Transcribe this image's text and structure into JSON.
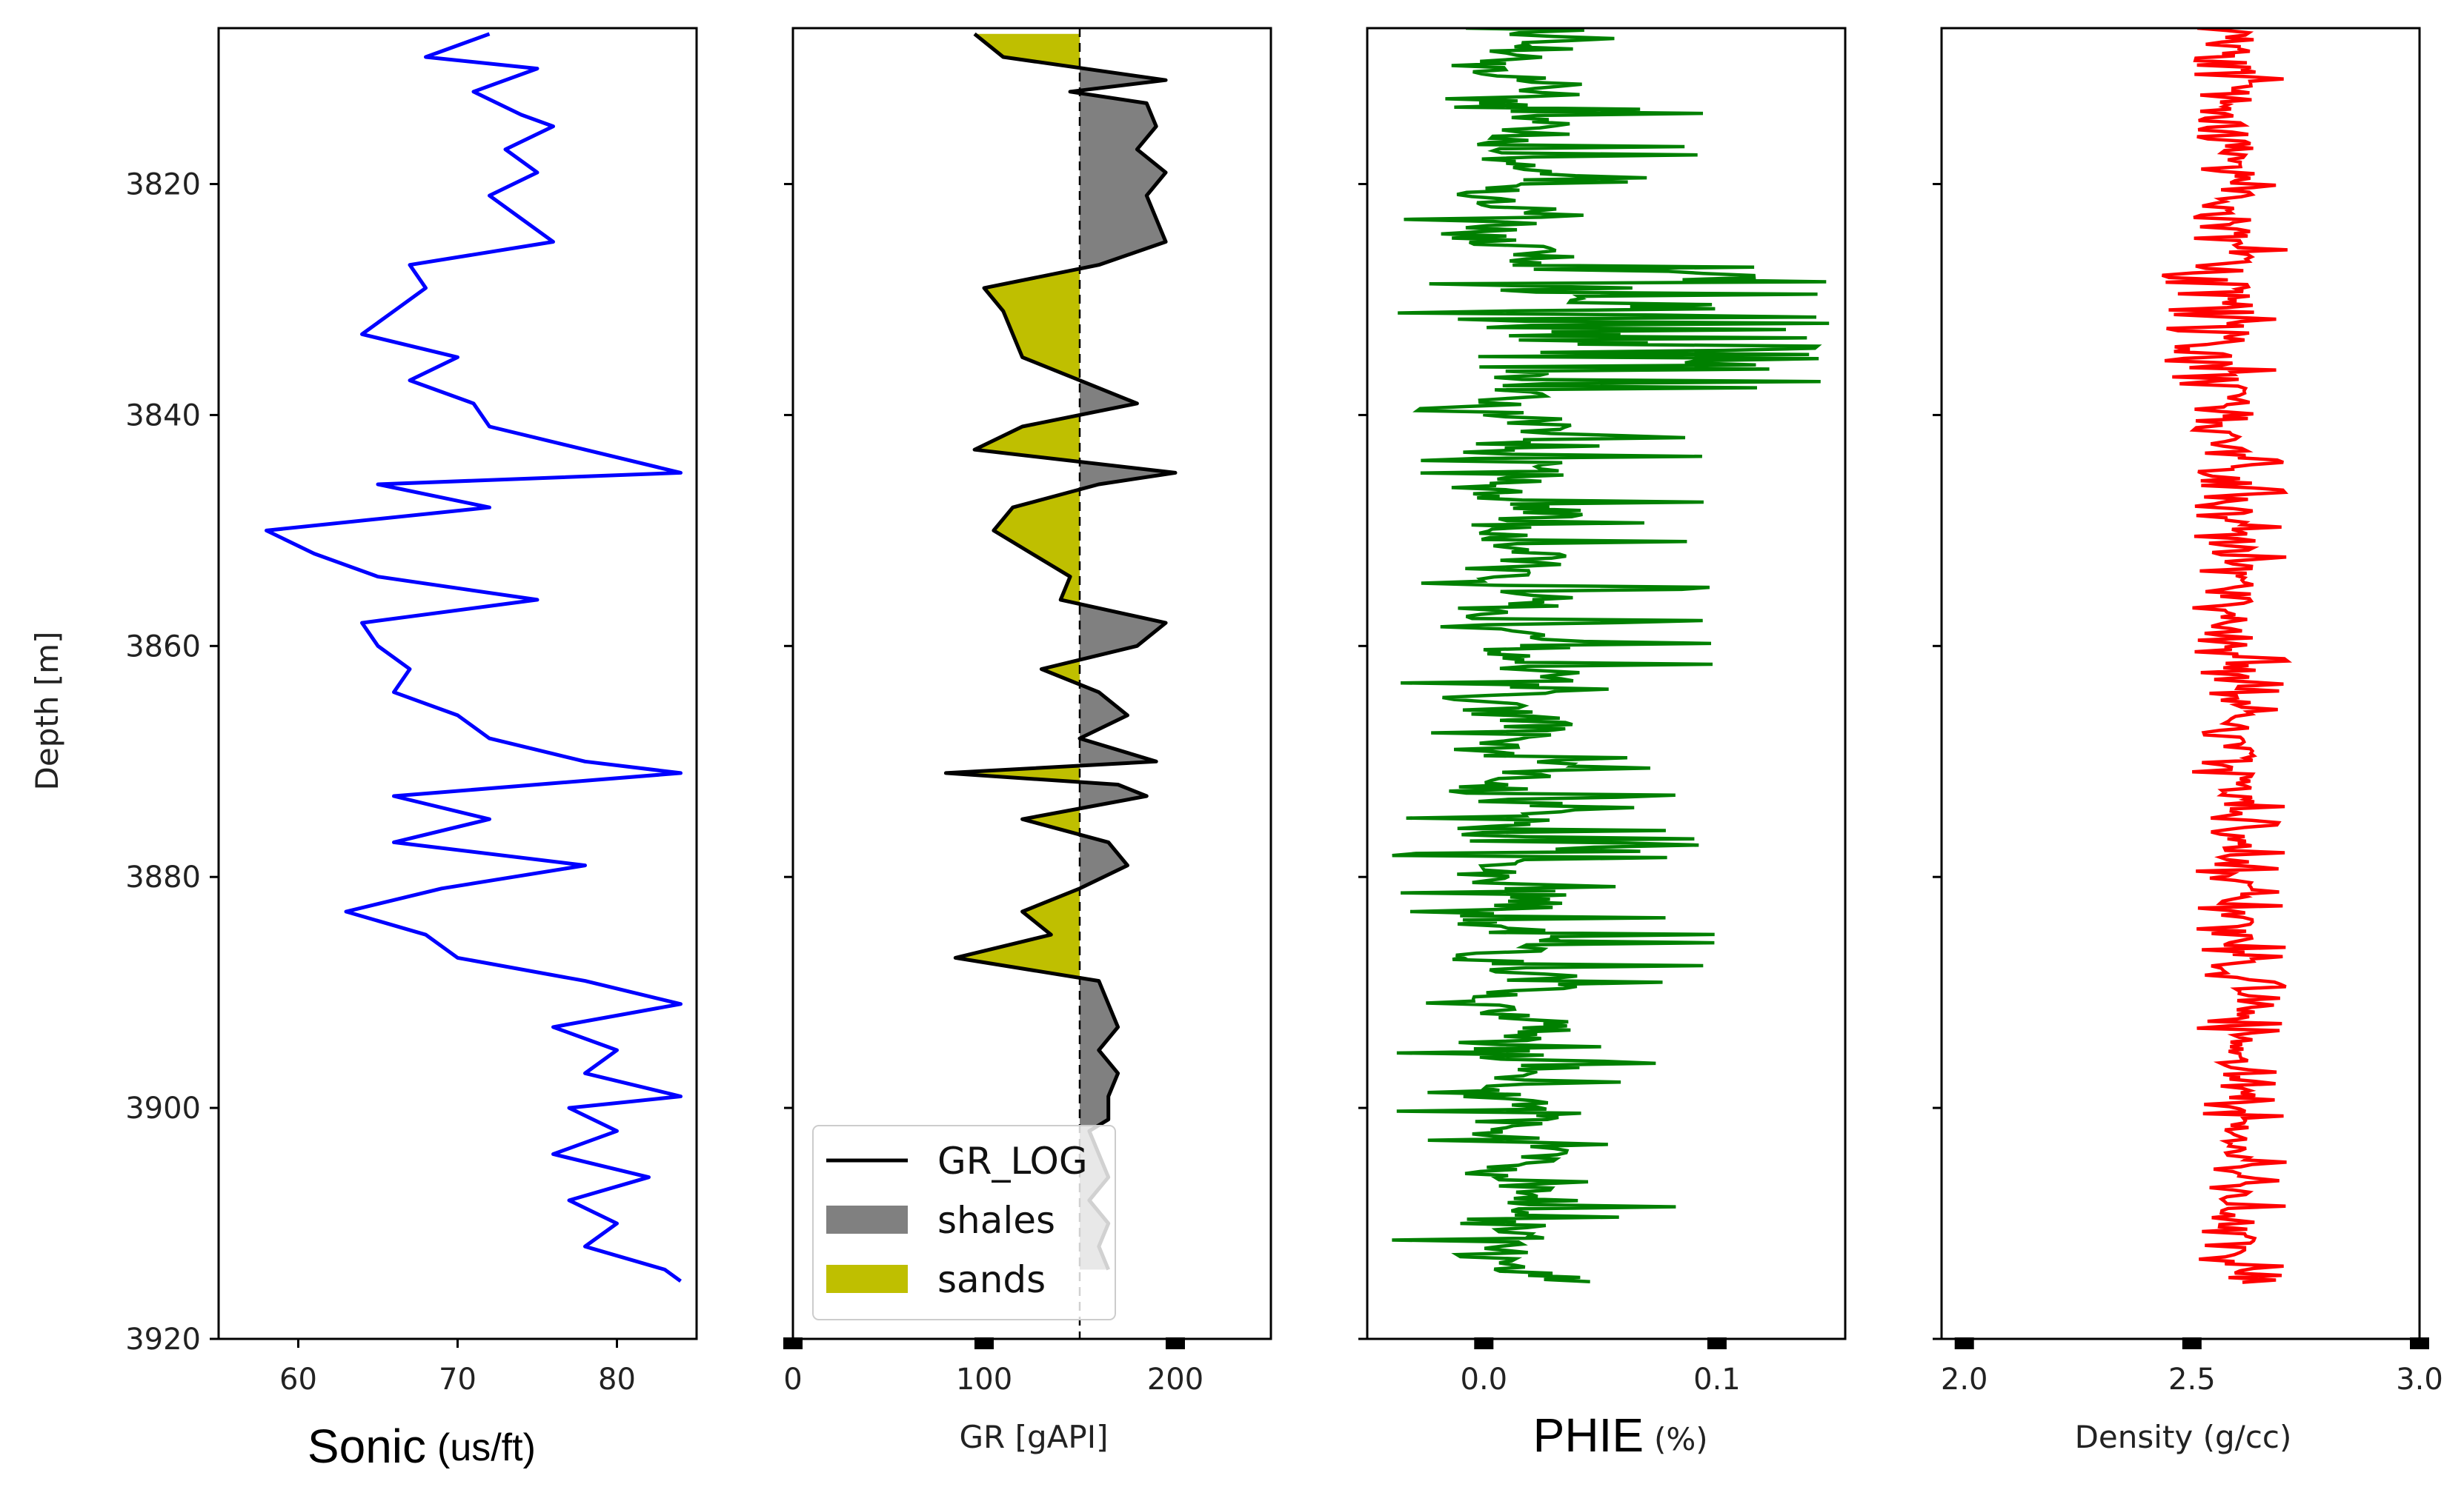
{
  "colors": {
    "sonic": "#0000ff",
    "gr": "#000000",
    "shales": "#808080",
    "sands": "#bfbf00",
    "phie": "#008000",
    "density": "#ff0000"
  },
  "chart_data": [
    {
      "id": "sonic",
      "type": "line",
      "xlabel": "Sonic",
      "xlabel_unit": "(us/ft)",
      "ylabel": "Depth [m]",
      "xlim": [
        55,
        85
      ],
      "ylim": [
        3920,
        3806.5
      ],
      "xticks": [
        60,
        70,
        80
      ],
      "yticks": [
        3820,
        3840,
        3860,
        3880,
        3900,
        3920
      ],
      "depth": [
        3807,
        3809,
        3810,
        3812,
        3814,
        3815,
        3817,
        3819,
        3821,
        3823,
        3825,
        3827,
        3829,
        3831,
        3833,
        3835,
        3837,
        3839,
        3841,
        3843,
        3845,
        3846,
        3848,
        3850,
        3852,
        3854,
        3856,
        3858,
        3860,
        3862,
        3864,
        3866,
        3868,
        3870,
        3871,
        3873,
        3875,
        3877,
        3879,
        3881,
        3883,
        3885,
        3887,
        3889,
        3891,
        3893,
        3895,
        3897,
        3899,
        3900,
        3902,
        3904,
        3906,
        3908,
        3910,
        3912,
        3914,
        3915
      ],
      "values": [
        72,
        68,
        75,
        71,
        74,
        76,
        73,
        75,
        72,
        74,
        76,
        67,
        68,
        66,
        64,
        70,
        67,
        71,
        72,
        78,
        84,
        65,
        72,
        58,
        61,
        65,
        75,
        64,
        65,
        67,
        66,
        70,
        72,
        78,
        84,
        66,
        72,
        66,
        78,
        69,
        63,
        68,
        70,
        78,
        84,
        76,
        80,
        78,
        84,
        77,
        80,
        76,
        82,
        77,
        80,
        78,
        83,
        84
      ]
    },
    {
      "id": "gr",
      "type": "area",
      "xlabel": "GR [gAPI]",
      "xlim": [
        0,
        250
      ],
      "ylim": [
        3920,
        3806.5
      ],
      "xticks": [
        0,
        100,
        200
      ],
      "cutoff": 150,
      "legend": [
        "GR_LOG",
        "shales",
        "sands"
      ],
      "legend_position": "lower-left",
      "depth": [
        3807,
        3809,
        3811,
        3812,
        3813,
        3815,
        3817,
        3819,
        3821,
        3823,
        3825,
        3827,
        3829,
        3831,
        3833,
        3835,
        3837,
        3839,
        3841,
        3843,
        3845,
        3846,
        3848,
        3850,
        3852,
        3854,
        3856,
        3858,
        3860,
        3862,
        3864,
        3866,
        3868,
        3870,
        3871,
        3872,
        3873,
        3875,
        3877,
        3879,
        3881,
        3883,
        3885,
        3887,
        3889,
        3891,
        3893,
        3895,
        3897,
        3899,
        3901,
        3902,
        3904,
        3906,
        3908,
        3910,
        3912,
        3914
      ],
      "values": [
        95,
        110,
        195,
        145,
        185,
        190,
        180,
        195,
        185,
        190,
        195,
        160,
        100,
        110,
        115,
        120,
        150,
        180,
        120,
        95,
        200,
        160,
        115,
        105,
        125,
        145,
        140,
        195,
        180,
        130,
        160,
        175,
        150,
        190,
        80,
        170,
        185,
        120,
        165,
        175,
        150,
        120,
        135,
        85,
        160,
        165,
        170,
        160,
        170,
        165,
        165,
        155,
        160,
        165,
        155,
        165,
        160,
        165
      ]
    },
    {
      "id": "phie",
      "type": "line",
      "xlabel": "PHIE",
      "xlabel_unit": "(%)",
      "xlim": [
        -0.05,
        0.155
      ],
      "ylim": [
        3920,
        3806.5
      ],
      "xticks": [
        0.0,
        0.1
      ],
      "xtick_labels": [
        "0.0",
        "0.1"
      ]
    },
    {
      "id": "density",
      "type": "line",
      "xlabel": "Density (g/cc)",
      "xlim": [
        1.95,
        3.0
      ],
      "ylim": [
        3920,
        3806.5
      ],
      "xticks": [
        2.0,
        2.5,
        3.0
      ],
      "xtick_labels": [
        "2.0",
        "2.5",
        "3.0"
      ]
    }
  ]
}
